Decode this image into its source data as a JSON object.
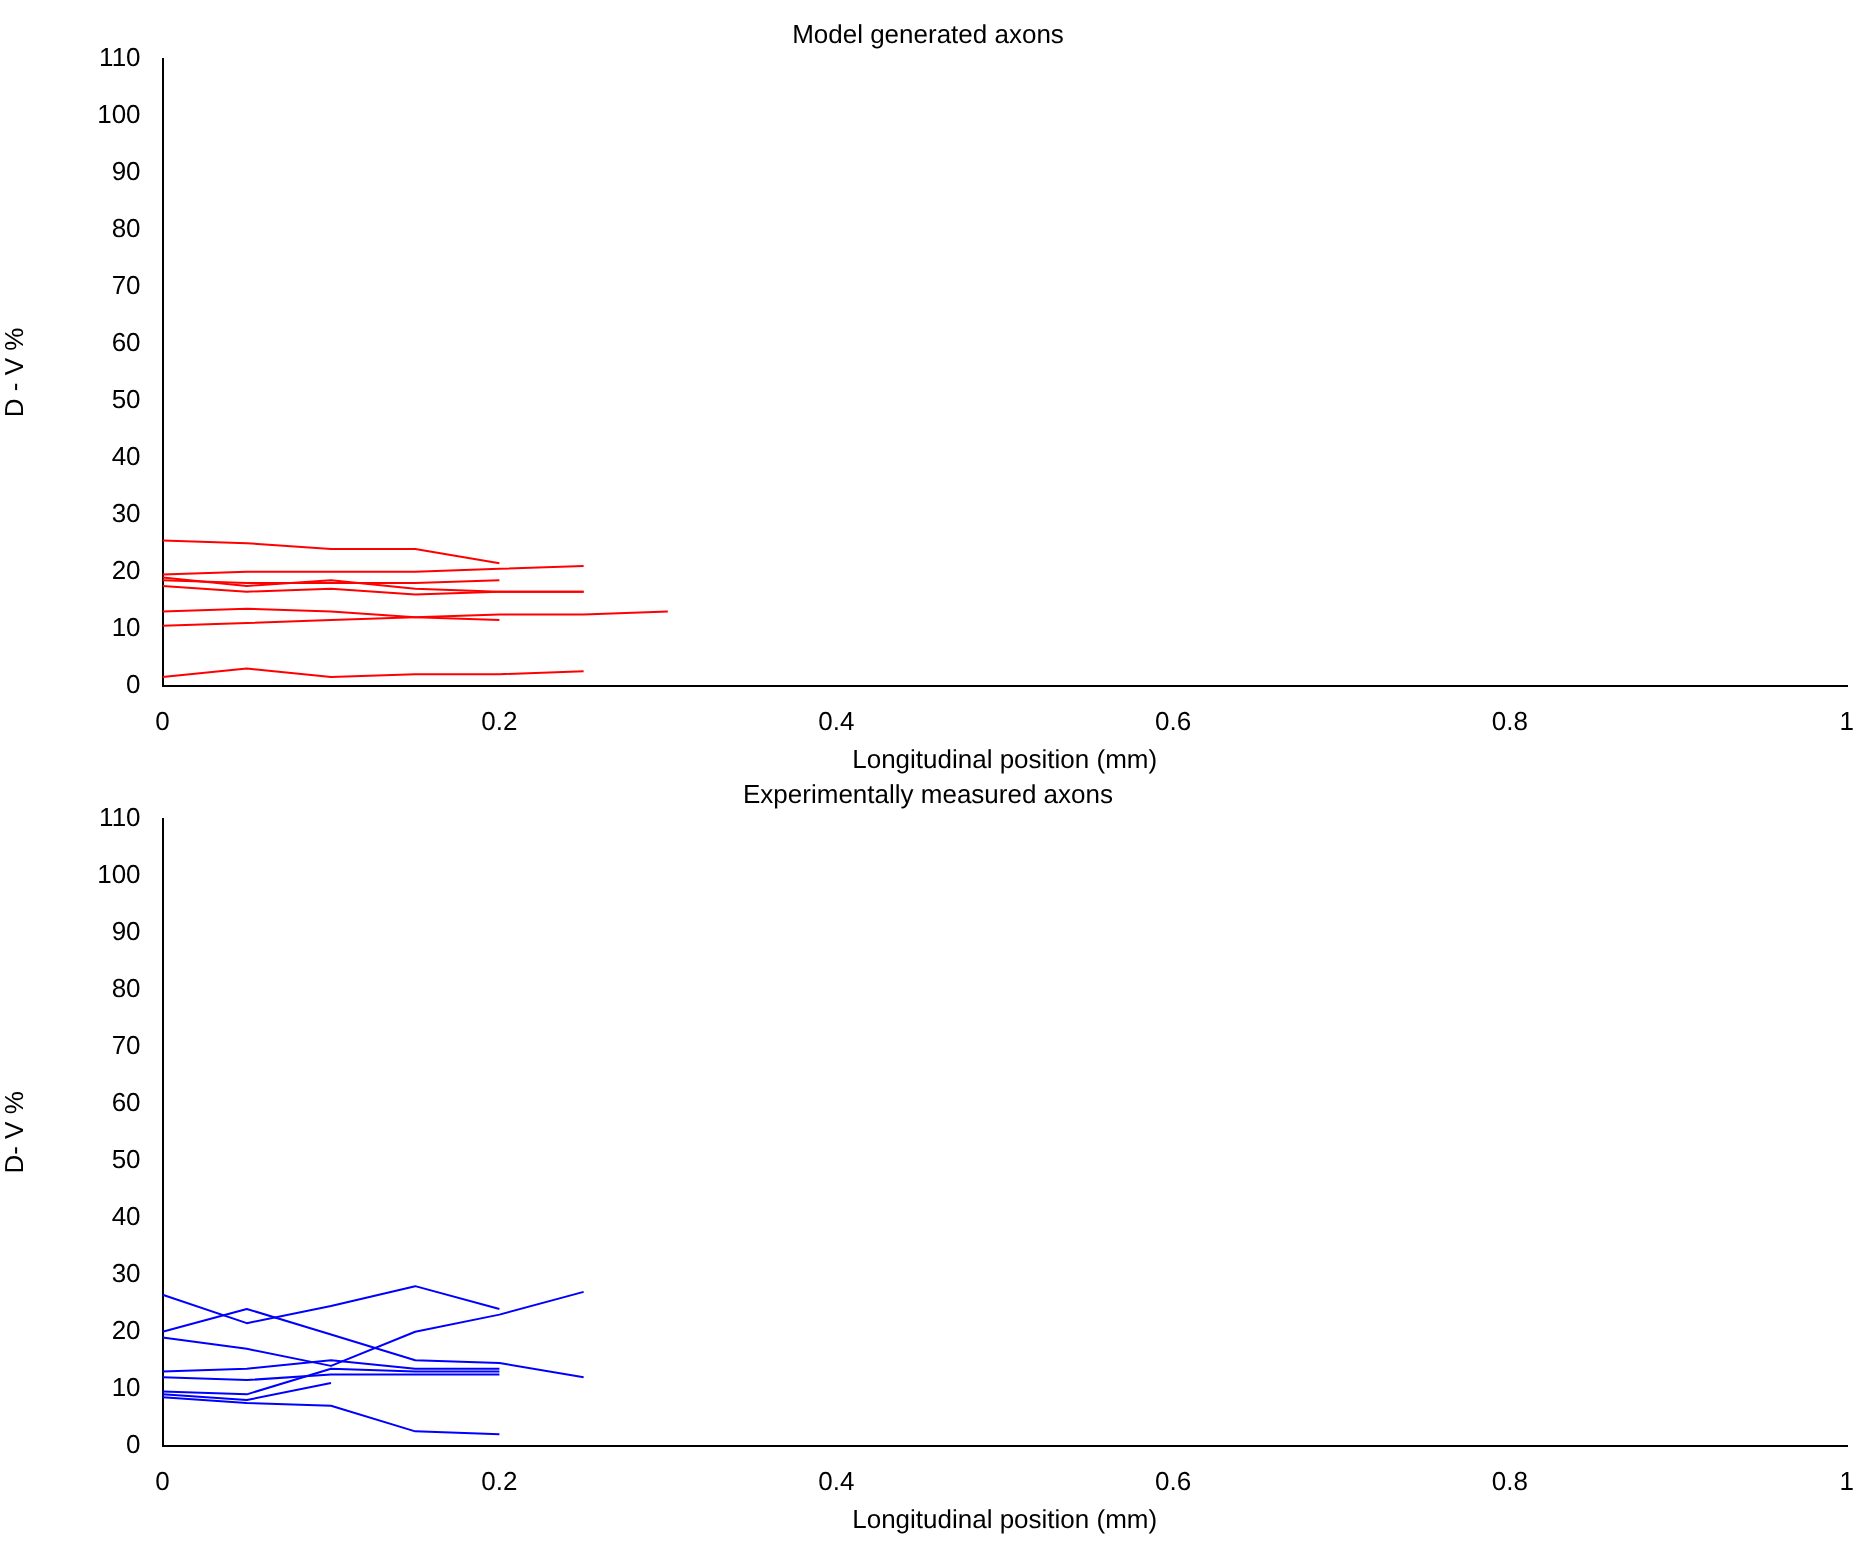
{
  "chart_data": [
    {
      "type": "line",
      "title": "Model generated axons",
      "xlabel": "Longitudinal position (mm)",
      "ylabel": "D - V %",
      "xlim": [
        0,
        1
      ],
      "xticks": [
        0,
        0.2,
        0.4,
        0.6,
        0.8,
        1
      ],
      "ylim": [
        0,
        110
      ],
      "yticks": [
        0,
        10,
        20,
        30,
        40,
        50,
        60,
        70,
        80,
        90,
        100,
        110
      ],
      "grid": false,
      "legend": false,
      "marker": "none",
      "line_style": "solid",
      "series": [
        {
          "color": "#ff0000",
          "x": [
            0,
            0.05,
            0.1,
            0.15,
            0.2
          ],
          "values": [
            25.5,
            25,
            24,
            24,
            21.5
          ]
        },
        {
          "color": "#ff0000",
          "x": [
            0,
            0.05,
            0.1,
            0.15,
            0.2,
            0.25
          ],
          "values": [
            19.5,
            20,
            20,
            20,
            20.5,
            21
          ]
        },
        {
          "color": "#ff0000",
          "x": [
            0,
            0.05,
            0.1,
            0.15,
            0.2
          ],
          "values": [
            18.5,
            18,
            18,
            18,
            18.5
          ]
        },
        {
          "color": "#ff0000",
          "x": [
            0,
            0.05,
            0.1,
            0.15,
            0.2,
            0.25
          ],
          "values": [
            17.5,
            16.5,
            17,
            16,
            16.5,
            16.5
          ]
        },
        {
          "color": "#ff0000",
          "x": [
            0,
            0.05,
            0.1,
            0.15,
            0.2,
            0.25
          ],
          "values": [
            19,
            17.5,
            18.5,
            17,
            16.5,
            16.5
          ]
        },
        {
          "color": "#ff0000",
          "x": [
            0,
            0.05,
            0.1,
            0.15,
            0.2
          ],
          "values": [
            13,
            13.5,
            13,
            12,
            11.5
          ]
        },
        {
          "color": "#ff0000",
          "x": [
            0,
            0.05,
            0.1,
            0.15,
            0.2,
            0.25,
            0.3
          ],
          "values": [
            10.5,
            11,
            11.5,
            12,
            12.5,
            12.5,
            13
          ]
        },
        {
          "color": "#ff0000",
          "x": [
            0,
            0.05,
            0.1,
            0.15,
            0.2,
            0.25
          ],
          "values": [
            1.5,
            3,
            1.5,
            2,
            2,
            2.5
          ]
        }
      ]
    },
    {
      "type": "line",
      "title": "Experimentally measured axons",
      "xlabel": "Longitudinal position (mm)",
      "ylabel": "D- V %",
      "xlim": [
        0,
        1
      ],
      "xticks": [
        0,
        0.2,
        0.4,
        0.6,
        0.8,
        1
      ],
      "ylim": [
        0,
        110
      ],
      "yticks": [
        0,
        10,
        20,
        30,
        40,
        50,
        60,
        70,
        80,
        90,
        100,
        110
      ],
      "grid": false,
      "legend": false,
      "marker": "none",
      "line_style": "solid",
      "series": [
        {
          "color": "#0000ff",
          "x": [
            0,
            0.05,
            0.1,
            0.15,
            0.2
          ],
          "values": [
            26.5,
            21.5,
            24.5,
            28,
            24
          ]
        },
        {
          "color": "#0000ff",
          "x": [
            0,
            0.05,
            0.1,
            0.15,
            0.2,
            0.25
          ],
          "values": [
            20,
            24,
            19.5,
            15,
            14.5,
            12
          ]
        },
        {
          "color": "#0000ff",
          "x": [
            0,
            0.05,
            0.1,
            0.15,
            0.2,
            0.25
          ],
          "values": [
            19,
            17,
            14,
            20,
            23,
            27
          ]
        },
        {
          "color": "#0000ff",
          "x": [
            0,
            0.05,
            0.1,
            0.15,
            0.2
          ],
          "values": [
            13,
            13.5,
            15,
            13.5,
            13.5
          ]
        },
        {
          "color": "#0000ff",
          "x": [
            0,
            0.05,
            0.1,
            0.15,
            0.2
          ],
          "values": [
            12,
            11.5,
            12.5,
            12.5,
            12.5
          ]
        },
        {
          "color": "#0000ff",
          "x": [
            0,
            0.05,
            0.1,
            0.15,
            0.2
          ],
          "values": [
            9.5,
            9,
            13.5,
            13,
            13
          ]
        },
        {
          "color": "#0000ff",
          "x": [
            0,
            0.05,
            0.1
          ],
          "values": [
            9,
            8,
            11
          ]
        },
        {
          "color": "#0000ff",
          "x": [
            0,
            0.05,
            0.1,
            0.15,
            0.2
          ],
          "values": [
            8.5,
            7.5,
            7,
            2.5,
            2
          ]
        }
      ]
    }
  ]
}
